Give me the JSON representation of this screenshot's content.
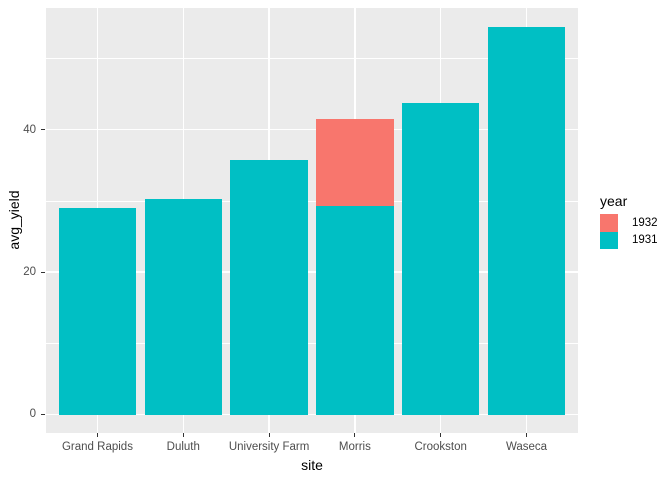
{
  "chart_data": {
    "type": "bar",
    "title": "",
    "xlabel": "site",
    "ylabel": "avg_yield",
    "categories": [
      "Grand Rapids",
      "Duluth",
      "University Farm",
      "Morris",
      "Crookston",
      "Waseca"
    ],
    "series": [
      {
        "name": "1932",
        "color": "#F8766D",
        "values": [
          null,
          null,
          null,
          41.5,
          null,
          null
        ]
      },
      {
        "name": "1931",
        "color": "#00BFC4",
        "values": [
          29.0,
          30.3,
          35.8,
          29.3,
          43.7,
          54.4
        ]
      }
    ],
    "legend": {
      "title": "year",
      "position": "right",
      "entries": [
        {
          "label": "1932",
          "color": "#F8766D"
        },
        {
          "label": "1931",
          "color": "#00BFC4"
        }
      ]
    },
    "y_ticks": [
      0,
      20,
      40
    ],
    "y_tick_labels": [
      "0",
      "20",
      "40"
    ],
    "y_minor_ticks": [
      10,
      30,
      50
    ],
    "ylim": [
      -2.6,
      57.1
    ],
    "bar_width_fraction": 0.9,
    "grid": true,
    "colors": {
      "panel_bg": "#EBEBEB",
      "grid": "#FFFFFF",
      "tick_label": "#4D4D4D",
      "tick_mark": "#333333",
      "axis_title": "#000000"
    }
  }
}
